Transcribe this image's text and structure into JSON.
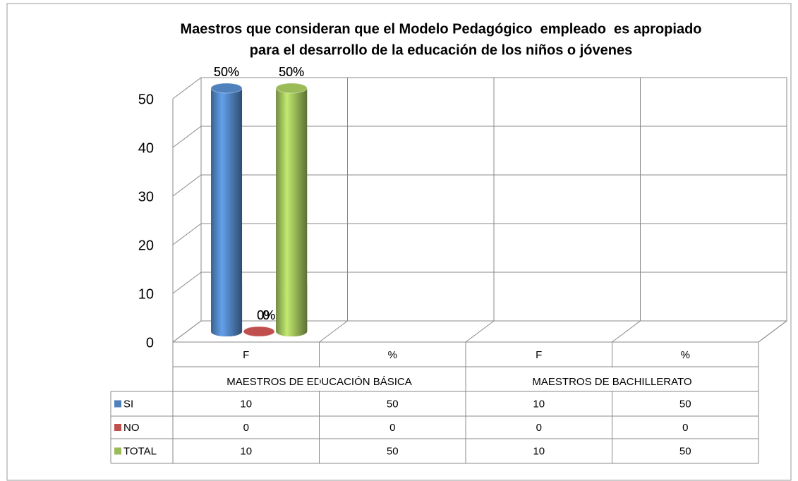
{
  "chart_data": {
    "type": "bar3d",
    "title": [
      "Maestros que consideran que el Modelo Pedagógico  empleado  es apropiado",
      "para el desarrollo de la educación de los niños o jóvenes"
    ],
    "categories": [
      "F",
      "%",
      "F",
      "%"
    ],
    "groups": [
      "MAESTROS DE EDUCACIÓN BÁSICA",
      "MAESTROS DE BACHILLERATO"
    ],
    "series": [
      {
        "name": "SI",
        "color": "#4f81bd",
        "values": [
          10,
          50,
          10,
          50
        ],
        "value_labels": [
          "10",
          "50%",
          "10",
          "50%"
        ]
      },
      {
        "name": "NO",
        "color": "#c0504d",
        "values": [
          0,
          0,
          0,
          0
        ],
        "value_labels": [
          "0",
          "0%",
          "0",
          "0%"
        ]
      },
      {
        "name": "TOTAL",
        "color": "#9bbb59",
        "values": [
          10,
          50,
          10,
          50
        ],
        "value_labels": [
          "10",
          "50%",
          "10",
          "50%"
        ]
      }
    ],
    "ylim": [
      0,
      50
    ],
    "yticks": [
      0,
      10,
      20,
      30,
      40,
      50
    ],
    "grid": true
  }
}
